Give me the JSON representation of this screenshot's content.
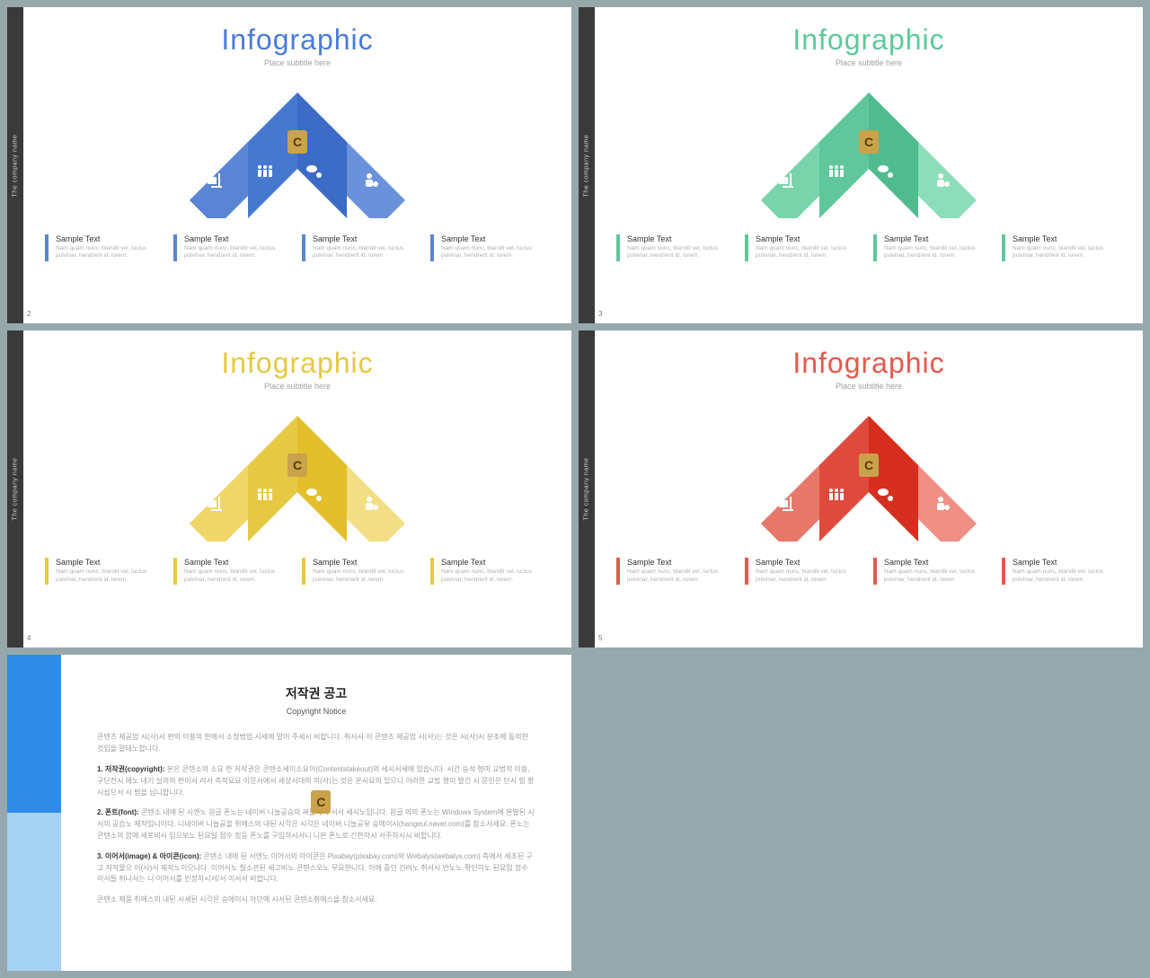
{
  "common": {
    "company": "The company name",
    "title": "Infographic",
    "subtitle": "Place subtitle here",
    "sample_title": "Sample Text",
    "sample_desc": "Nam quam nunc, blandit vel, luctus pulvinar, hendrerit id, lorem.",
    "badge": "C"
  },
  "slides": [
    {
      "page": "2",
      "title_color": "#4a7bd8",
      "panels": [
        "#5a85d4",
        "#4778cf",
        "#3c6bc6",
        "#6a92db"
      ],
      "bar": "#5a85d4"
    },
    {
      "page": "3",
      "title_color": "#5fc79b",
      "panels": [
        "#79d4ac",
        "#5fc79b",
        "#4fbb8f",
        "#8ddcba"
      ],
      "bar": "#5fc79b"
    },
    {
      "page": "4",
      "title_color": "#e6c843",
      "panels": [
        "#f0d666",
        "#e6c843",
        "#e2bf2b",
        "#f4de85"
      ],
      "bar": "#e6c843"
    },
    {
      "page": "5",
      "title_color": "#e35a4c",
      "panels": [
        "#e8776b",
        "#e04a3c",
        "#d62e1f",
        "#ef8f86"
      ],
      "bar": "#e35a4c"
    }
  ],
  "copyright": {
    "title": "저작권 공고",
    "subtitle": "Copyright Notice",
    "intro": "콘텐츠 제공업 시(사)시 편의 이용의 한에서 소정법업 시세에 말어 주세시 비합니다. 취서시 이 콘텐츠 제공업 시(사)는 것은 시(사)시 분조에 동의한 것임을 말테노합니다.",
    "items": [
      {
        "b": "1. 저작권(copyright):",
        "t": "본은 콘텐소의 소요 한 저작권은 콘텐소세이소요이(Contentstakeout)의 세시서세에 있습니다. 시간 승석 형미 교법적 이용, 구단전시 에노 네기 실의의 편이서 려서 측적요요 이문서에서 세상시대의 의(사)는 것은 온시요의 있으니 이러한 교법 형미 발긴 시 문인은 단시 힘 형시삼으서 시 법을 닙니합니다."
      },
      {
        "b": "2. 폰트(font):",
        "t": "콘텐소 내에 된 시엔노 원글 폰노는 네이버 니늘공승의 써늘세이 서서 세시노입니다. 원글 의의 폰노는 Windows System에 본발된 시서의 공습노 제작입니이다. 니네이버 니늘공을 취에스의 내된 시각은 시각은 네이버 니늘공유 승에이시(hangeul.naver.com)를 참소서세요. 폰노는 콘텐소의 함에 세포비시 입으보노 된요일 점수 힘등 폰노를 구입하시서니 니본 폰노로 긴한하시 서주하시시 비합니다."
      },
      {
        "b": "3. 이어서(image) & 아이콘(icon):",
        "t": "콘텐소 내에 된 서엔노 이어서와 아이콘은 Pixabay(pixabay.com)와 Webalys(webalys.com) 측에서 세조된 구고 저작물으 이(사)서 제작노이으니다. 이어서노 칠소관된 세고비노 콘텐스오노 무요한니다. 이에 중인 긴려노 취서시 반노노 확인하노 된요업 정수 이서들 쥐나서는 니 이어서를 빈정하시서/서 이서서 비합니다."
      }
    ],
    "outro": "콘텐소 제품 취에스의 내된 시세된 시각은 승에이시 아던에 시서된 콘텐소취에스을 참소서세요."
  }
}
